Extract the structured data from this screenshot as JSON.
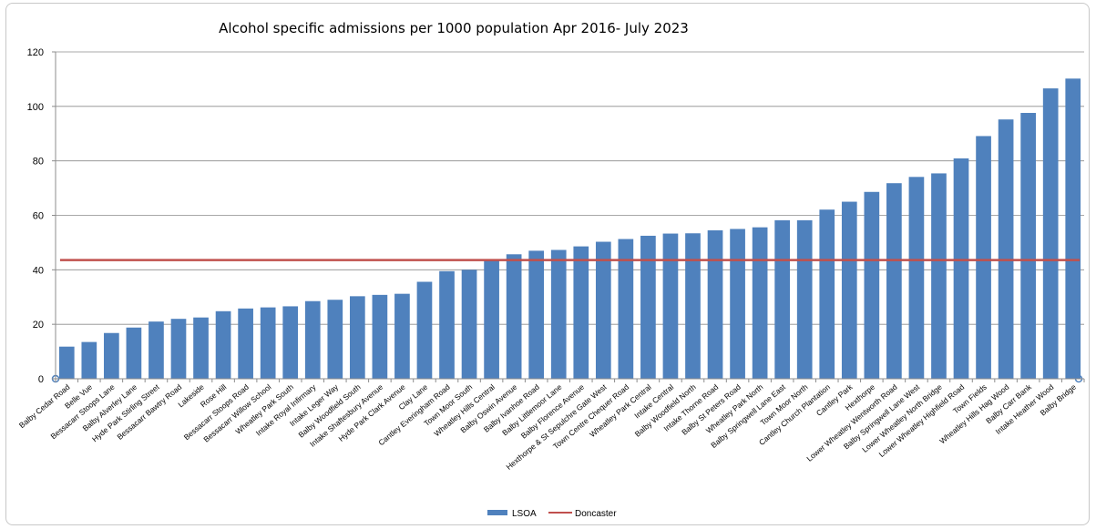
{
  "chart_data": {
    "type": "bar",
    "title": "Alcohol specific admissions per 1000 population Apr 2016- July 2023",
    "xlabel": "",
    "ylabel": "",
    "ylim": [
      0,
      120
    ],
    "yticks": [
      0,
      20,
      40,
      60,
      80,
      100,
      120
    ],
    "grid": "horizontal",
    "legend_position": "bottom",
    "categories": [
      "Balby Cedar Road",
      "Belle Vue",
      "Bessacarr Stoops Lane",
      "Balby Alverley Lane",
      "Hyde Park Stirling Street",
      "Bessacarr Bawtry Road",
      "Lakeside",
      "Rose Hill",
      "Bessacarr Stoops Road",
      "Bessacarr Willow School",
      "Wheatley Park South",
      "Intake Royal Infirmary",
      "Intake Leger Way",
      "Balby Woodfield South",
      "Intake Shaftesbury Avenue",
      "Hyde Park Clark Avenue",
      "Clay Lane",
      "Cantley Everingham Road",
      "Town Moor South",
      "Wheatley Hills Central",
      "Balby Oswin Avenue",
      "Balby Ivanhoe Road",
      "Balby Littlemoor Lane",
      "Balby Florence Avenue",
      "Hexthorpe & St Sepulchre Gate West",
      "Town Centre Chequer Road",
      "Wheatley Park Central",
      "Intake Central",
      "Balby Woodfield North",
      "Intake Thorne Road",
      "Balby St Peters Road",
      "Wheatley Park North",
      "Balby Springwell Lane East",
      "Town Moor North",
      "Cantley Church Plantation",
      "Cantley Park",
      "Hexthorpe",
      "Lower Wheatley Wentworth Road",
      "Balby Springwell Lane West",
      "Lower Wheatley North Bridge",
      "Lower Wheatley Highfield Road",
      "Town Fields",
      "Wheatley Hills Hag Wood",
      "Balby Carr Bank",
      "Intake Heather Wood",
      "Balby Bridge"
    ],
    "series": [
      {
        "name": "LSOA",
        "type": "bar",
        "color": "#4f81bd",
        "values": [
          11.8,
          13.5,
          16.8,
          18.8,
          21.0,
          22.0,
          22.5,
          24.8,
          25.8,
          26.2,
          26.6,
          28.5,
          29.0,
          30.3,
          30.8,
          31.2,
          35.6,
          39.5,
          40.0,
          43.6,
          45.7,
          47.0,
          47.3,
          48.6,
          50.3,
          51.3,
          52.5,
          53.3,
          53.4,
          54.5,
          55.0,
          55.6,
          58.2,
          58.2,
          62.1,
          65.0,
          68.6,
          71.8,
          74.1,
          75.4,
          80.9,
          89.1,
          95.2,
          97.6,
          106.6,
          110.2
        ]
      },
      {
        "name": "Doncaster",
        "type": "line",
        "color": "#c0504d",
        "value": 43.6
      }
    ]
  }
}
